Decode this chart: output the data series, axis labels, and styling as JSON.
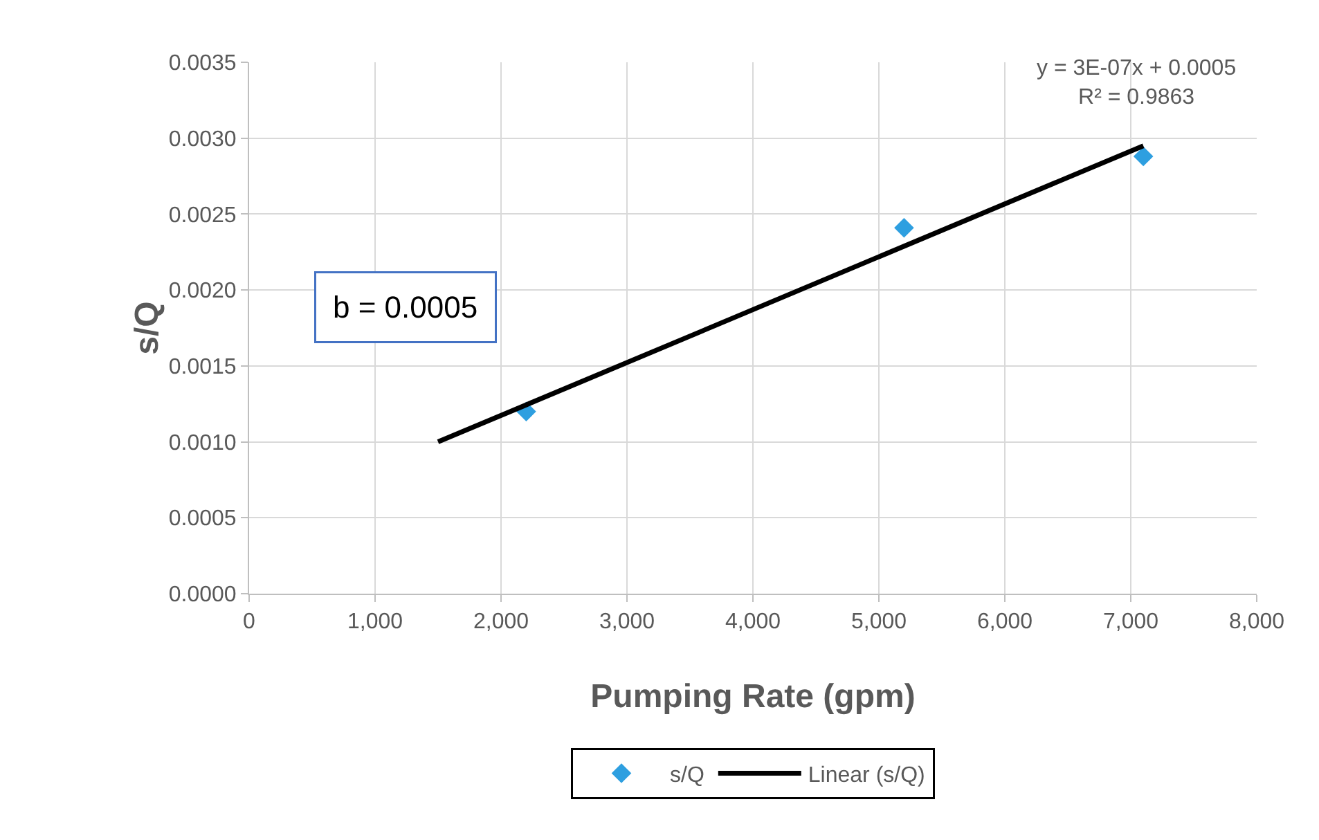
{
  "chart_data": {
    "type": "scatter",
    "xlabel": "Pumping Rate (gpm)",
    "ylabel": "s/Q",
    "series": [
      {
        "name": "s/Q",
        "marker": "diamond",
        "color": "#2e9fe0",
        "x": [
          2200,
          5200,
          7100
        ],
        "values": [
          0.0012,
          0.00241,
          0.00288
        ]
      },
      {
        "name": "Linear (s/Q)",
        "type": "line",
        "marker": "none",
        "color": "#000000",
        "x": [
          1500,
          7100
        ],
        "values": [
          0.001,
          0.00295
        ]
      }
    ],
    "xlim": [
      0,
      8000
    ],
    "xticks": [
      0,
      {
        "value": 1000,
        "label": "1,000"
      },
      {
        "value": 2000,
        "label": "2,000"
      },
      {
        "value": 3000,
        "label": "3,000"
      },
      {
        "value": 4000,
        "label": "4,000"
      },
      {
        "value": 5000,
        "label": "5,000"
      },
      {
        "value": 6000,
        "label": "6,000"
      },
      {
        "value": 7000,
        "label": "7,000"
      },
      {
        "value": 8000,
        "label": "8,000"
      }
    ],
    "ylim": [
      0,
      0.0035
    ],
    "yticks": [
      {
        "value": 0,
        "label": "0.0000"
      },
      {
        "value": 0.0005,
        "label": "0.0005"
      },
      {
        "value": 0.001,
        "label": "0.0010"
      },
      {
        "value": 0.0015,
        "label": "0.0015"
      },
      {
        "value": 0.002,
        "label": "0.0020"
      },
      {
        "value": 0.0025,
        "label": "0.0025"
      },
      {
        "value": 0.003,
        "label": "0.0030"
      },
      {
        "value": 0.0035,
        "label": "0.0035"
      }
    ],
    "annotations": [
      "y = 3E-07x + 0.0005\nR² = 0.9863",
      "b = 0.0005"
    ],
    "grid": true,
    "legend": "bottom"
  }
}
